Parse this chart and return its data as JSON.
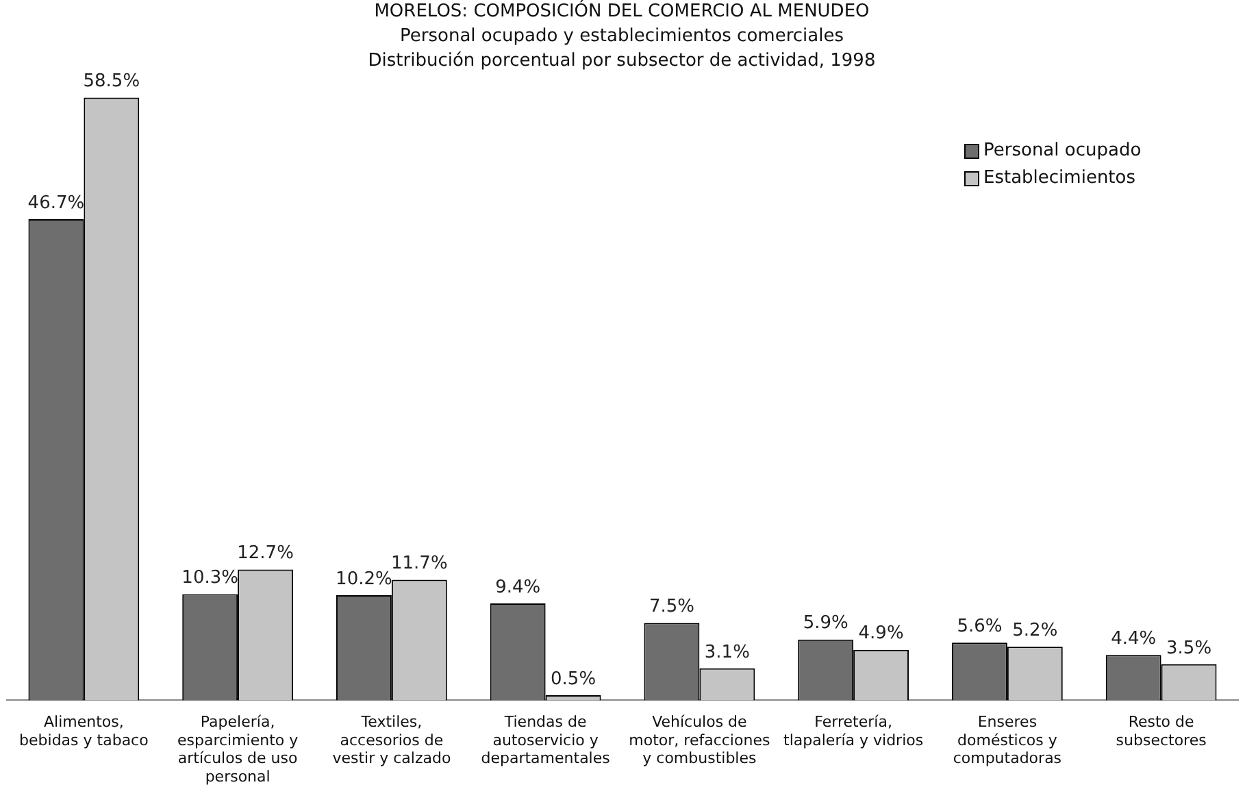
{
  "chart_data": {
    "type": "bar",
    "title": "MORELOS: COMPOSICIÓN DEL COMERCIO AL MENUDEO",
    "subtitle": "Personal ocupado y establecimientos comerciales\nDistribución porcentual por subsector de actividad, 1998",
    "categories": [
      "Alimentos, bebidas y tabaco",
      "Papelería, esparcimiento y artículos de uso personal",
      "Textiles, accesorios de vestir y calzado",
      "Tiendas de autoservicio y departamentales",
      "Vehículos de motor, refacciones y combustibles",
      "Ferretería, tlapalería y vidrios",
      "Enseres domésticos y computadoras",
      "Resto de subsectores"
    ],
    "series": [
      {
        "name": "Personal ocupado",
        "color": "#6e6e6e",
        "values": [
          46.7,
          10.3,
          10.2,
          9.4,
          7.5,
          5.9,
          5.6,
          4.4
        ],
        "value_labels": [
          "46.7%",
          "10.3%",
          "10.2%",
          "9.4%",
          "7.5%",
          "5.9%",
          "5.6%",
          "4.4%"
        ]
      },
      {
        "name": "Establecimientos",
        "color": "#c4c4c4",
        "values": [
          58.5,
          12.7,
          11.7,
          0.5,
          3.1,
          4.9,
          5.2,
          3.5
        ],
        "value_labels": [
          "58.5%",
          "12.7%",
          "11.7%",
          "0.5%",
          "3.1%",
          "4.9%",
          "5.2%",
          "3.5%"
        ]
      }
    ],
    "legend": "top right",
    "grid": false
  }
}
